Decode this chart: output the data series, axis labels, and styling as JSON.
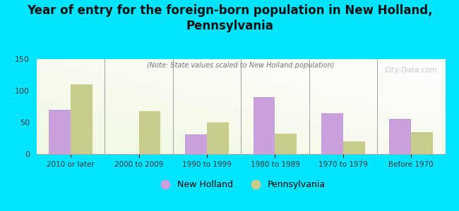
{
  "title": "Year of entry for the foreign-born population in New Holland,\nPennsylvania",
  "subtitle": "(Note: State values scaled to New Holland population)",
  "categories": [
    "2010 or later",
    "2000 to 2009",
    "1990 to 1999",
    "1980 to 1989",
    "1970 to 1979",
    "Before 1970"
  ],
  "new_holland": [
    70,
    0,
    31,
    90,
    65,
    56
  ],
  "pennsylvania": [
    110,
    68,
    50,
    32,
    20,
    35
  ],
  "new_holland_color": "#c9a0dc",
  "pennsylvania_color": "#c8cc8a",
  "background_color": "#00e5ff",
  "ylim": [
    0,
    150
  ],
  "yticks": [
    0,
    50,
    100,
    150
  ],
  "watermark": "City-Data.com",
  "legend_nh": "New Holland",
  "legend_pa": "Pennsylvania",
  "title_fontsize": 12,
  "subtitle_fontsize": 7.5,
  "bar_width": 0.32
}
